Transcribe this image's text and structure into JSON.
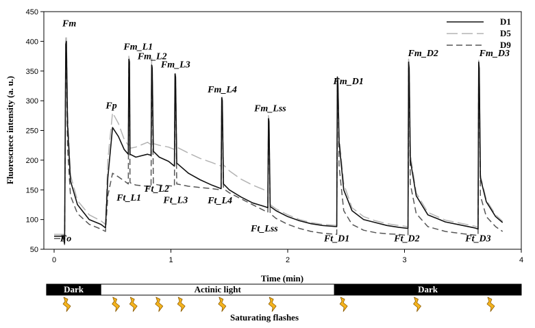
{
  "colors": {
    "D1": "#111111",
    "D5": "#b3b3b3",
    "D9": "#555555",
    "bar_dark": "#000000",
    "bar_light": "#ffffff",
    "flash_fill": "#f5b41e",
    "flash_stroke": "#8a5a00"
  },
  "chart_data": {
    "type": "line",
    "xlabel": "Time (min)",
    "ylabel": "Fluorescnece intensity (a. u.)",
    "xlim": [
      0,
      4
    ],
    "ylim": [
      50,
      450
    ],
    "xticks": [
      0,
      1,
      2,
      3,
      4
    ],
    "yticks": [
      50,
      100,
      150,
      200,
      250,
      300,
      350,
      400,
      450
    ],
    "grid": false,
    "legend_position": "top-right",
    "series": [
      {
        "name": "D1",
        "dash": "solid",
        "x": [
          0.0,
          0.08,
          0.09,
          0.1,
          0.105,
          0.115,
          0.14,
          0.2,
          0.3,
          0.4,
          0.44,
          0.46,
          0.5,
          0.55,
          0.6,
          0.635,
          0.64,
          0.645,
          0.65,
          0.7,
          0.8,
          0.83,
          0.835,
          0.84,
          0.85,
          0.9,
          0.98,
          1.03,
          1.035,
          1.04,
          1.05,
          1.15,
          1.25,
          1.35,
          1.43,
          1.435,
          1.44,
          1.45,
          1.5,
          1.6,
          1.7,
          1.8,
          1.83,
          1.835,
          1.84,
          1.85,
          1.9,
          2.0,
          2.1,
          2.2,
          2.3,
          2.42,
          2.425,
          2.43,
          2.44,
          2.48,
          2.55,
          2.65,
          2.75,
          2.85,
          2.95,
          3.03,
          3.035,
          3.04,
          3.05,
          3.1,
          3.2,
          3.35,
          3.5,
          3.6,
          3.63,
          3.635,
          3.64,
          3.65,
          3.7,
          3.78,
          3.84
        ],
        "y": [
          72,
          72,
          60,
          395,
          400,
          260,
          165,
          125,
          100,
          92,
          86,
          170,
          255,
          240,
          218,
          210,
          370,
          365,
          210,
          205,
          210,
          208,
          360,
          355,
          215,
          205,
          198,
          190,
          345,
          340,
          195,
          178,
          167,
          158,
          152,
          305,
          300,
          160,
          150,
          138,
          128,
          122,
          120,
          270,
          265,
          122,
          115,
          105,
          98,
          93,
          90,
          88,
          340,
          330,
          230,
          150,
          115,
          100,
          95,
          90,
          87,
          85,
          365,
          355,
          200,
          140,
          108,
          96,
          90,
          86,
          84,
          365,
          355,
          170,
          130,
          105,
          95
        ]
      },
      {
        "name": "D5",
        "dash": "long-dash",
        "x": [
          0.0,
          0.08,
          0.09,
          0.1,
          0.105,
          0.115,
          0.14,
          0.2,
          0.3,
          0.4,
          0.44,
          0.46,
          0.5,
          0.55,
          0.6,
          0.635,
          0.64,
          0.645,
          0.65,
          0.7,
          0.8,
          0.83,
          0.835,
          0.84,
          0.85,
          0.9,
          0.98,
          1.03,
          1.035,
          1.04,
          1.05,
          1.15,
          1.25,
          1.35,
          1.43,
          1.435,
          1.44,
          1.45,
          1.5,
          1.6,
          1.7,
          1.8,
          1.83,
          1.835,
          1.84,
          1.85,
          1.9,
          2.0,
          2.1,
          2.2,
          2.3,
          2.42,
          2.425,
          2.43,
          2.44,
          2.48,
          2.55,
          2.65,
          2.75,
          2.85,
          2.95,
          3.03,
          3.035,
          3.04,
          3.05,
          3.1,
          3.2,
          3.35,
          3.5,
          3.6,
          3.63,
          3.635,
          3.64,
          3.65,
          3.7,
          3.78,
          3.84
        ],
        "y": [
          75,
          75,
          62,
          405,
          410,
          280,
          175,
          132,
          108,
          98,
          92,
          200,
          280,
          262,
          235,
          225,
          375,
          368,
          220,
          222,
          230,
          226,
          372,
          362,
          228,
          225,
          222,
          218,
          350,
          345,
          222,
          212,
          203,
          196,
          190,
          310,
          305,
          192,
          182,
          168,
          158,
          150,
          146,
          275,
          268,
          125,
          118,
          108,
          100,
          95,
          92,
          90,
          340,
          330,
          240,
          160,
          120,
          105,
          98,
          93,
          90,
          88,
          370,
          360,
          210,
          145,
          112,
          99,
          93,
          89,
          87,
          368,
          358,
          175,
          133,
          108,
          97
        ]
      },
      {
        "name": "D9",
        "dash": "dash",
        "x": [
          0.0,
          0.08,
          0.09,
          0.1,
          0.105,
          0.115,
          0.14,
          0.2,
          0.3,
          0.4,
          0.44,
          0.46,
          0.5,
          0.55,
          0.6,
          0.635,
          0.64,
          0.645,
          0.65,
          0.7,
          0.8,
          0.83,
          0.835,
          0.84,
          0.85,
          0.9,
          0.98,
          1.03,
          1.035,
          1.04,
          1.05,
          1.15,
          1.25,
          1.35,
          1.43,
          1.435,
          1.44,
          1.45,
          1.5,
          1.6,
          1.7,
          1.8,
          1.83,
          1.835,
          1.84,
          1.85,
          1.9,
          2.0,
          2.1,
          2.2,
          2.3,
          2.42,
          2.425,
          2.43,
          2.44,
          2.48,
          2.55,
          2.65,
          2.75,
          2.85,
          2.95,
          3.03,
          3.035,
          3.04,
          3.05,
          3.1,
          3.2,
          3.35,
          3.5,
          3.6,
          3.63,
          3.635,
          3.64,
          3.65,
          3.7,
          3.78,
          3.84
        ],
        "y": [
          68,
          68,
          58,
          370,
          375,
          220,
          140,
          110,
          92,
          84,
          80,
          140,
          178,
          172,
          165,
          160,
          355,
          350,
          162,
          158,
          156,
          154,
          350,
          345,
          160,
          158,
          157,
          156,
          330,
          325,
          160,
          156,
          154,
          152,
          150,
          295,
          290,
          152,
          145,
          135,
          125,
          115,
          112,
          262,
          258,
          110,
          102,
          92,
          85,
          80,
          77,
          75,
          330,
          320,
          190,
          115,
          92,
          82,
          78,
          76,
          75,
          73,
          355,
          345,
          160,
          110,
          88,
          80,
          76,
          74,
          73,
          355,
          345,
          140,
          105,
          88,
          80
        ]
      }
    ],
    "annotations": [
      {
        "text": "Fm",
        "x": 0.13,
        "y": 425
      },
      {
        "text": "Fo",
        "x": 0.1,
        "y": 63
      },
      {
        "text": "Fp",
        "x": 0.49,
        "y": 287
      },
      {
        "text": "Fm_L1",
        "x": 0.72,
        "y": 386
      },
      {
        "text": "Fm_L2",
        "x": 0.84,
        "y": 370
      },
      {
        "text": "Fm_L3",
        "x": 1.04,
        "y": 356
      },
      {
        "text": "Fm_L4",
        "x": 1.44,
        "y": 314
      },
      {
        "text": "Fm_Lss",
        "x": 1.85,
        "y": 282
      },
      {
        "text": "Fm_D1",
        "x": 2.52,
        "y": 328
      },
      {
        "text": "Fm_D2",
        "x": 3.16,
        "y": 375
      },
      {
        "text": "Fm_D3",
        "x": 3.77,
        "y": 375
      },
      {
        "text": "Ft_L1",
        "x": 0.64,
        "y": 132
      },
      {
        "text": "Ft_L2",
        "x": 0.88,
        "y": 147
      },
      {
        "text": "Ft_L3",
        "x": 1.04,
        "y": 128
      },
      {
        "text": "Ft_L4",
        "x": 1.42,
        "y": 127
      },
      {
        "text": "Ft_Lss",
        "x": 1.8,
        "y": 80
      },
      {
        "text": "Ft_D1",
        "x": 2.42,
        "y": 63
      },
      {
        "text": "Ft_D2",
        "x": 3.02,
        "y": 63
      },
      {
        "text": "Ft_D3",
        "x": 3.63,
        "y": 63
      }
    ]
  },
  "light_bar": {
    "segments": [
      {
        "label": "Dark",
        "from": -0.065,
        "to": 0.4,
        "dark": true
      },
      {
        "label": "Actinic light",
        "from": 0.4,
        "to": 2.4,
        "dark": false
      },
      {
        "label": "Dark",
        "from": 2.4,
        "to": 4.0,
        "dark": true
      }
    ],
    "flash_times": [
      0.1,
      0.52,
      0.67,
      0.89,
      1.08,
      1.43,
      1.86,
      2.47,
      3.1,
      3.73
    ],
    "caption": "Saturating flashes"
  }
}
